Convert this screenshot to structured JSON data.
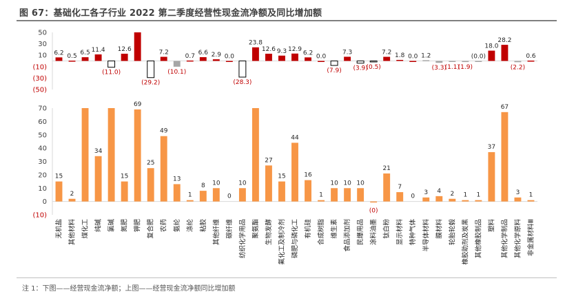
{
  "title": "图 67：基础化工各子行业 2022 第二季度经营性现金流净额及同比增加额",
  "note": "注 1：下图——经营现金流净额；上图——经营现金流净额同比增加额",
  "colors": {
    "top_positive": "#c00000",
    "top_negative_fill": "#ffffff",
    "top_negative_stroke": "#000000",
    "top_small_negative": "#a6a6a6",
    "bottom_bar": "#f79646",
    "negative_label": "#c00000",
    "axis": "#404040",
    "grid": "#d9d9d9"
  },
  "chart_data": [
    {
      "type": "bar",
      "name": "经营现金流净额同比增加额",
      "ylim": [
        -50,
        50
      ],
      "yticks": [
        50,
        30,
        10,
        -10,
        -30,
        -50
      ],
      "ytick_labels": [
        "50",
        "30",
        "10",
        "(10)",
        "(30)",
        "(50)"
      ],
      "categories": [
        "无机盐",
        "其他材料",
        "煤化工",
        "纯碱",
        "氯碱",
        "氮肥",
        "钾肥",
        "复合肥",
        "农药",
        "氨纶",
        "涤纶",
        "粘胶",
        "其他纤维",
        "碳纤维",
        "纺织化学用品",
        "聚氨酯",
        "生物发酵",
        "氟化工及制冷剂",
        "磷肥与磷化工",
        "有机硅",
        "合成树脂",
        "维生素",
        "食品添加剂",
        "民爆用品",
        "涂料油墨",
        "钛白粉",
        "显示材料",
        "特种气体",
        "半导体材料",
        "膜材料",
        "轮胎轮毂",
        "橡胶助剂及炭黑",
        "其他橡胶制品",
        "塑料",
        "其他化学制品",
        "其他化学原料",
        "非金属材料Ⅲ"
      ],
      "values": [
        6.2,
        0.5,
        6.5,
        11.4,
        -11.0,
        12.6,
        50,
        -29.2,
        7.2,
        -10.1,
        0.7,
        6.6,
        2.9,
        0.0,
        -28.3,
        23.8,
        12.6,
        9.3,
        12.9,
        6.2,
        0.0,
        -7.9,
        7.3,
        -3.9,
        -0.5,
        7.2,
        1.8,
        0.0,
        1.2,
        -3.3,
        -1.1,
        -1.9,
        -0.0,
        18.0,
        28.2,
        -2.2,
        0.6
      ],
      "value_labels": [
        "6.2",
        "0.5",
        "6.5",
        "11.4",
        "(11.0)",
        "12.6",
        "",
        "(29.2)",
        "7.2",
        "(10.1)",
        "0.7",
        "6.6",
        "2.9",
        "0.0",
        "(28.3)",
        "23.8",
        "12.6",
        "9.3",
        "12.9",
        "6.2",
        "0.0",
        "(7.9)",
        "7.3",
        "(3.9)",
        "(0.5)",
        "7.2",
        "1.8",
        "0.0",
        "1.2",
        "(3.3)",
        "(1.1)",
        "(1.9)",
        "(0.0)",
        "18.0",
        "28.2",
        "(2.2)",
        "0.6"
      ],
      "styles": [
        "pos",
        "pos",
        "pos",
        "pos",
        "neg",
        "pos",
        "pos",
        "neg",
        "pos",
        "grey",
        "pos",
        "pos",
        "pos",
        "pos",
        "neg",
        "pos",
        "pos",
        "pos",
        "pos",
        "pos",
        "pos",
        "neg",
        "pos",
        "neg",
        "neg",
        "pos",
        "pos",
        "pos",
        "grey",
        "grey",
        "grey",
        "grey",
        "grey",
        "pos",
        "pos",
        "grey",
        "pos"
      ]
    },
    {
      "type": "bar",
      "name": "经营现金流净额",
      "ylim": [
        -10,
        70
      ],
      "yticks": [
        70,
        60,
        50,
        40,
        30,
        20,
        10,
        0,
        -10
      ],
      "ytick_labels": [
        "70",
        "60",
        "50",
        "40",
        "30",
        "20",
        "10",
        "0",
        "(10)"
      ],
      "categories": [
        "无机盐",
        "其他材料",
        "煤化工",
        "纯碱",
        "氯碱",
        "氮肥",
        "钾肥",
        "复合肥",
        "农药",
        "氨纶",
        "涤纶",
        "粘胶",
        "其他纤维",
        "碳纤维",
        "纺织化学用品",
        "聚氨酯",
        "生物发酵",
        "氟化工及制冷剂",
        "磷肥与磷化工",
        "有机硅",
        "合成树脂",
        "维生素",
        "食品添加剂",
        "民爆用品",
        "涂料油墨",
        "钛白粉",
        "显示材料",
        "特种气体",
        "半导体材料",
        "膜材料",
        "轮胎轮毂",
        "橡胶助剂及炭黑",
        "其他橡胶制品",
        "塑料",
        "其他化学制品",
        "其他化学原料",
        "非金属材料Ⅲ"
      ],
      "values": [
        15,
        2,
        70,
        34,
        70,
        15,
        69,
        25,
        49,
        13,
        1,
        8,
        10,
        0,
        10,
        70,
        27,
        15,
        44,
        16,
        1,
        10,
        10,
        10,
        -0.3,
        21,
        7,
        0,
        3,
        4,
        2,
        1,
        1,
        37,
        67,
        3,
        1
      ],
      "value_labels": [
        "15",
        "2",
        "",
        "34",
        "",
        "15",
        "69",
        "25",
        "49",
        "13",
        "1",
        "8",
        "10",
        "0",
        "10",
        "",
        "27",
        "15",
        "44",
        "16",
        "1",
        "10",
        "10",
        "10",
        "(0)",
        "21",
        "7",
        "0",
        "3",
        "4",
        "2",
        "1",
        "1",
        "37",
        "67",
        "3",
        "1"
      ]
    }
  ]
}
